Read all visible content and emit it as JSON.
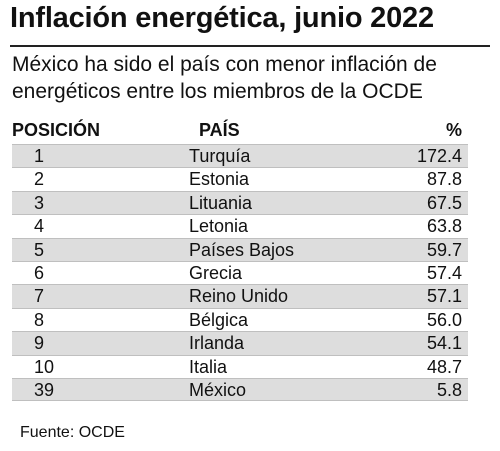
{
  "title": "Inflación energética, junio 2022",
  "subtitle": "México ha sido el país con menor inflación de energéticos entre los miembros de la OCDE",
  "source": "Fuente: OCDE",
  "chart_data": {
    "type": "table",
    "columns": [
      "POSICIÓN",
      "PAÍS",
      "%"
    ],
    "rows": [
      {
        "pos": "1",
        "country": "Turquía",
        "value": "172.4"
      },
      {
        "pos": "2",
        "country": "Estonia",
        "value": "87.8"
      },
      {
        "pos": "3",
        "country": "Lituania",
        "value": "67.5"
      },
      {
        "pos": "4",
        "country": "Letonia",
        "value": "63.8"
      },
      {
        "pos": "5",
        "country": "Países Bajos",
        "value": "59.7"
      },
      {
        "pos": "6",
        "country": "Grecia",
        "value": "57.4"
      },
      {
        "pos": "7",
        "country": "Reino Unido",
        "value": "57.1"
      },
      {
        "pos": "8",
        "country": "Bélgica",
        "value": "56.0"
      },
      {
        "pos": "9",
        "country": "Irlanda",
        "value": "54.1"
      },
      {
        "pos": "10",
        "country": "Italia",
        "value": "48.7"
      },
      {
        "pos": "39",
        "country": "México",
        "value": "5.8"
      }
    ]
  }
}
